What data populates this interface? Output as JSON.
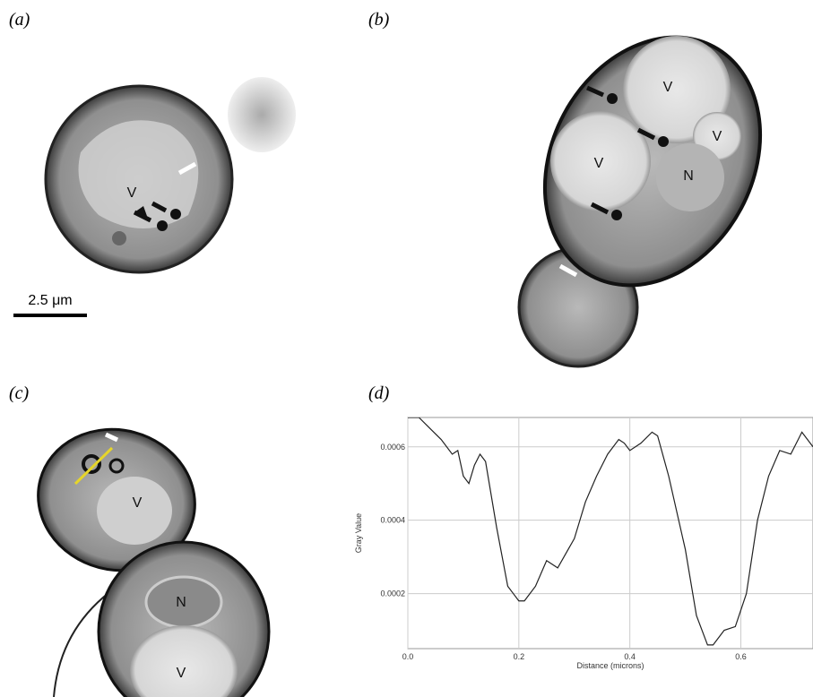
{
  "panel_labels": [
    "(a)",
    "(b)",
    "(c)",
    "(d)"
  ],
  "scale_bar": "2.5 μm",
  "annotations": {
    "a": [
      "V"
    ],
    "b": [
      "V",
      "V",
      "V",
      "N"
    ],
    "c": [
      "V",
      "N",
      "V"
    ]
  },
  "chart_data": {
    "type": "line",
    "xlabel": "Distance (microns)",
    "ylabel": "Gray Value",
    "x": [
      0,
      0.02,
      0.04,
      0.06,
      0.08,
      0.09,
      0.1,
      0.11,
      0.12,
      0.13,
      0.14,
      0.16,
      0.18,
      0.19,
      0.2,
      0.21,
      0.23,
      0.25,
      0.27,
      0.3,
      0.32,
      0.34,
      0.36,
      0.38,
      0.39,
      0.4,
      0.42,
      0.44,
      0.45,
      0.47,
      0.5,
      0.52,
      0.54,
      0.55,
      0.57,
      0.59,
      0.61,
      0.63,
      0.65,
      0.67,
      0.69,
      0.71,
      0.73
    ],
    "series": [
      {
        "color": "#222222",
        "values": [
          0.00068,
          0.00068,
          0.00065,
          0.00062,
          0.00058,
          0.00059,
          0.00052,
          0.0005,
          0.00055,
          0.00058,
          0.00056,
          0.00038,
          0.00022,
          0.0002,
          0.00018,
          0.00018,
          0.00022,
          0.00029,
          0.00027,
          0.00035,
          0.00045,
          0.00052,
          0.00058,
          0.00062,
          0.00061,
          0.00059,
          0.00061,
          0.00064,
          0.00063,
          0.00052,
          0.00032,
          0.00014,
          6e-05,
          6e-05,
          0.0001,
          0.00011,
          0.0002,
          0.0004,
          0.00052,
          0.00059,
          0.00058,
          0.00064,
          0.0006
        ]
      }
    ],
    "xlim": [
      0,
      0.73
    ],
    "ylim": [
      5e-05,
      0.00068
    ],
    "xticks": [
      {
        "value": 0,
        "label": "0.0"
      },
      0.2,
      0.4,
      0.6
    ],
    "yticks": [
      0.0002,
      0.0004,
      0.0006
    ],
    "grid": true
  }
}
